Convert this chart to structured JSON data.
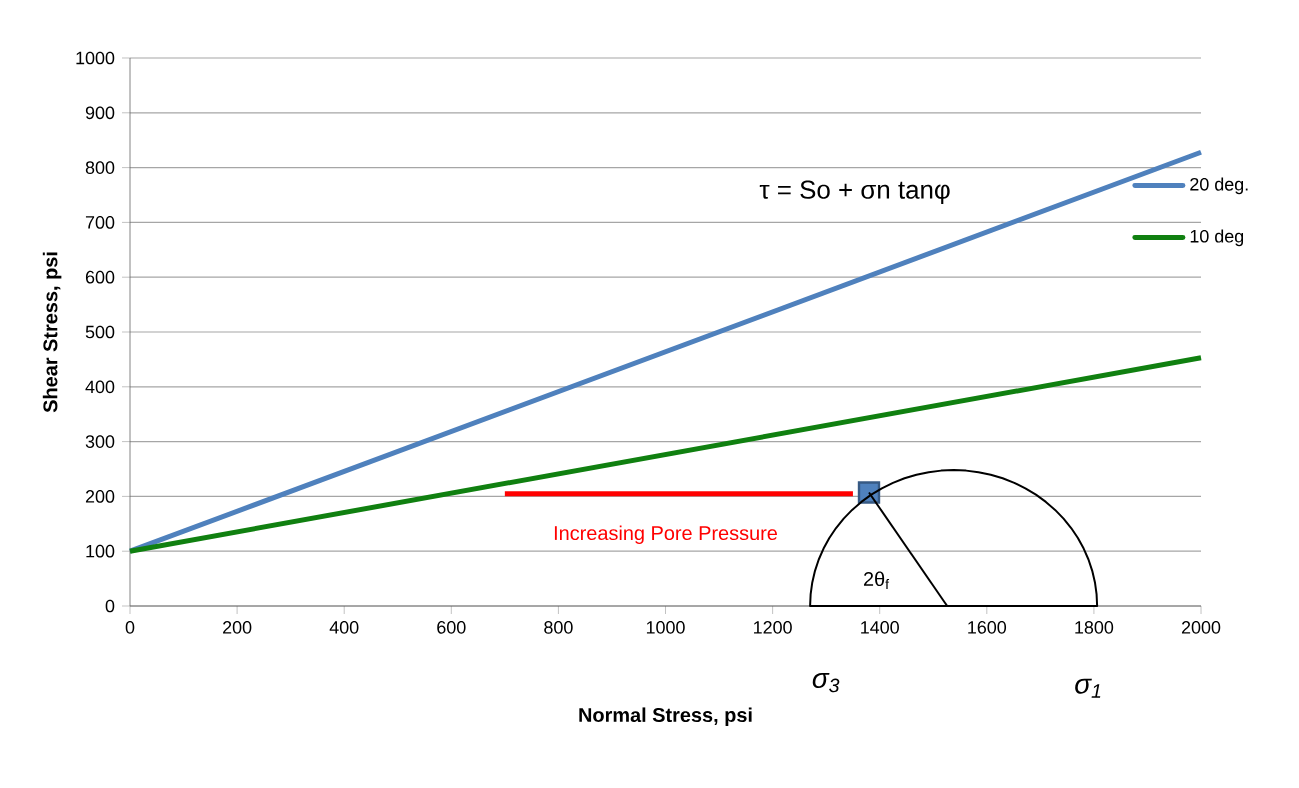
{
  "chart_data": {
    "type": "line",
    "xlabel": "Normal Stress, psi",
    "ylabel": "Shear Stress, psi",
    "xlim": [
      0,
      2000
    ],
    "xticks": [
      0,
      200,
      400,
      600,
      800,
      1000,
      1200,
      1400,
      1600,
      1800,
      2000
    ],
    "ylim": [
      0,
      1000
    ],
    "yticks": [
      0,
      100,
      200,
      300,
      400,
      500,
      600,
      700,
      800,
      900,
      1000
    ],
    "grid": "y",
    "legend": "right",
    "series": [
      {
        "name": "20 deg.",
        "color": "#4f81bd",
        "x": [
          0,
          2000
        ],
        "values": [
          100,
          828
        ]
      },
      {
        "name": "10 deg",
        "color": "#108010",
        "x": [
          0,
          2000
        ],
        "values": [
          100,
          453
        ]
      },
      {
        "color": "#ff0000",
        "x": [
          1350,
          700
        ],
        "values": [
          205,
          205
        ]
      },
      {
        "type": "scatter",
        "marker": "square",
        "color": "#4f81bd",
        "x": [
          1380
        ],
        "values": [
          207
        ]
      }
    ],
    "annotations": [
      "τ = So + σn tanφ",
      "Increasing Pore Pressure",
      "2θ$_{f}$",
      "σ$_{3}$",
      "σ$_{1}$"
    ]
  }
}
